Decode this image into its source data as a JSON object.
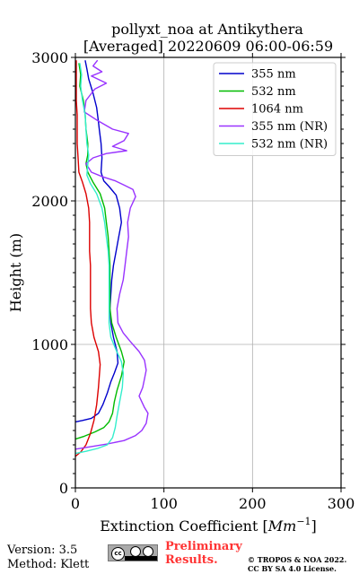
{
  "chart_data": {
    "type": "line",
    "title_line1": "pollyxt_noa at Antikythera",
    "title_line2": "[Averaged] 20220609 06:00-06:59",
    "xlabel_prefix": "Extinction Coefficient [",
    "xlabel_unit": "Mm",
    "xlabel_exp": "−1",
    "xlabel_suffix": "]",
    "ylabel": "Height (m)",
    "xlim": [
      0,
      300
    ],
    "ylim": [
      0,
      3000
    ],
    "xticks": [
      0,
      100,
      200,
      300
    ],
    "yticks": [
      0,
      1000,
      2000,
      3000
    ],
    "grid": true,
    "legend_position": "top-right",
    "series": [
      {
        "name": "355 nm",
        "color": "#0000cc",
        "points": [
          [
            0,
            460
          ],
          [
            8,
            470
          ],
          [
            18,
            485
          ],
          [
            26,
            520
          ],
          [
            31,
            580
          ],
          [
            36,
            660
          ],
          [
            40,
            740
          ],
          [
            44,
            800
          ],
          [
            48,
            870
          ],
          [
            47,
            950
          ],
          [
            43,
            1050
          ],
          [
            40,
            1150
          ],
          [
            39,
            1250
          ],
          [
            40,
            1350
          ],
          [
            41,
            1450
          ],
          [
            43,
            1550
          ],
          [
            46,
            1650
          ],
          [
            49,
            1750
          ],
          [
            52,
            1850
          ],
          [
            50,
            1950
          ],
          [
            46,
            2040
          ],
          [
            38,
            2100
          ],
          [
            32,
            2140
          ],
          [
            29,
            2200
          ],
          [
            30,
            2300
          ],
          [
            29,
            2400
          ],
          [
            27,
            2500
          ],
          [
            26,
            2550
          ],
          [
            24,
            2650
          ],
          [
            20,
            2750
          ],
          [
            15,
            2850
          ],
          [
            13,
            2920
          ],
          [
            11,
            2980
          ]
        ]
      },
      {
        "name": "532 nm",
        "color": "#00bb00",
        "points": [
          [
            0,
            340
          ],
          [
            10,
            360
          ],
          [
            22,
            390
          ],
          [
            32,
            420
          ],
          [
            38,
            460
          ],
          [
            42,
            520
          ],
          [
            44,
            600
          ],
          [
            47,
            680
          ],
          [
            52,
            780
          ],
          [
            55,
            880
          ],
          [
            52,
            950
          ],
          [
            46,
            1050
          ],
          [
            41,
            1150
          ],
          [
            39,
            1250
          ],
          [
            39,
            1350
          ],
          [
            39,
            1450
          ],
          [
            39,
            1550
          ],
          [
            38,
            1650
          ],
          [
            37,
            1750
          ],
          [
            35,
            1850
          ],
          [
            33,
            1950
          ],
          [
            28,
            2050
          ],
          [
            20,
            2130
          ],
          [
            14,
            2200
          ],
          [
            12,
            2260
          ],
          [
            14,
            2320
          ],
          [
            14,
            2400
          ],
          [
            12,
            2500
          ],
          [
            11,
            2600
          ],
          [
            9,
            2700
          ],
          [
            5,
            2800
          ],
          [
            6,
            2880
          ],
          [
            4,
            2960
          ]
        ]
      },
      {
        "name": "1064 nm",
        "color": "#dd0000",
        "points": [
          [
            0,
            220
          ],
          [
            6,
            250
          ],
          [
            12,
            300
          ],
          [
            17,
            380
          ],
          [
            21,
            470
          ],
          [
            24,
            580
          ],
          [
            26,
            700
          ],
          [
            28,
            860
          ],
          [
            26,
            950
          ],
          [
            21,
            1050
          ],
          [
            18,
            1150
          ],
          [
            17,
            1250
          ],
          [
            17,
            1350
          ],
          [
            17,
            1450
          ],
          [
            17,
            1550
          ],
          [
            16,
            1650
          ],
          [
            16,
            1750
          ],
          [
            16,
            1850
          ],
          [
            15,
            1950
          ],
          [
            12,
            2050
          ],
          [
            8,
            2130
          ],
          [
            4,
            2200
          ],
          [
            3,
            2300
          ],
          [
            2,
            2400
          ],
          [
            2,
            2500
          ],
          [
            2,
            2600
          ],
          [
            1,
            2700
          ],
          [
            1,
            2800
          ],
          [
            1,
            2900
          ],
          [
            1,
            2980
          ]
        ]
      },
      {
        "name": "355 nm (NR)",
        "color": "#9933ff",
        "points": [
          [
            0,
            270
          ],
          [
            15,
            285
          ],
          [
            35,
            305
          ],
          [
            55,
            330
          ],
          [
            68,
            365
          ],
          [
            75,
            400
          ],
          [
            80,
            450
          ],
          [
            82,
            520
          ],
          [
            78,
            560
          ],
          [
            72,
            640
          ],
          [
            76,
            700
          ],
          [
            78,
            760
          ],
          [
            80,
            820
          ],
          [
            78,
            890
          ],
          [
            72,
            950
          ],
          [
            62,
            1020
          ],
          [
            54,
            1080
          ],
          [
            48,
            1150
          ],
          [
            47,
            1250
          ],
          [
            50,
            1350
          ],
          [
            54,
            1450
          ],
          [
            56,
            1550
          ],
          [
            58,
            1650
          ],
          [
            60,
            1750
          ],
          [
            59,
            1850
          ],
          [
            62,
            1950
          ],
          [
            68,
            2030
          ],
          [
            65,
            2080
          ],
          [
            55,
            2110
          ],
          [
            45,
            2140
          ],
          [
            30,
            2170
          ],
          [
            18,
            2200
          ],
          [
            12,
            2260
          ],
          [
            20,
            2300
          ],
          [
            35,
            2330
          ],
          [
            58,
            2350
          ],
          [
            42,
            2380
          ],
          [
            55,
            2420
          ],
          [
            60,
            2470
          ],
          [
            42,
            2500
          ],
          [
            25,
            2560
          ],
          [
            10,
            2620
          ],
          [
            12,
            2700
          ],
          [
            22,
            2780
          ],
          [
            35,
            2820
          ],
          [
            18,
            2870
          ],
          [
            30,
            2900
          ],
          [
            20,
            2940
          ],
          [
            25,
            2980
          ]
        ]
      },
      {
        "name": "532 nm (NR)",
        "color": "#33eecc",
        "points": [
          [
            0,
            240
          ],
          [
            12,
            255
          ],
          [
            25,
            275
          ],
          [
            36,
            300
          ],
          [
            42,
            350
          ],
          [
            45,
            420
          ],
          [
            47,
            500
          ],
          [
            50,
            600
          ],
          [
            53,
            700
          ],
          [
            54,
            800
          ],
          [
            52,
            880
          ],
          [
            46,
            960
          ],
          [
            40,
            1050
          ],
          [
            38,
            1150
          ],
          [
            38,
            1250
          ],
          [
            38,
            1350
          ],
          [
            38,
            1450
          ],
          [
            38,
            1550
          ],
          [
            37,
            1650
          ],
          [
            35,
            1750
          ],
          [
            33,
            1850
          ],
          [
            30,
            1950
          ],
          [
            24,
            2050
          ],
          [
            17,
            2120
          ],
          [
            13,
            2180
          ],
          [
            14,
            2250
          ],
          [
            15,
            2320
          ],
          [
            13,
            2400
          ],
          [
            12,
            2500
          ],
          [
            11,
            2600
          ],
          [
            8,
            2700
          ],
          [
            6,
            2800
          ],
          [
            7,
            2880
          ],
          [
            5,
            2960
          ]
        ]
      }
    ]
  },
  "footer": {
    "version_line": "Version: 3.5",
    "method_line": "Method: Klett",
    "license_badge_text": "cc",
    "prelim_line1": "Preliminary",
    "prelim_line2": "Results.",
    "copyright_line1": "© TROPOS & NOA 2022.",
    "copyright_line2": "CC BY SA 4.0 License."
  }
}
